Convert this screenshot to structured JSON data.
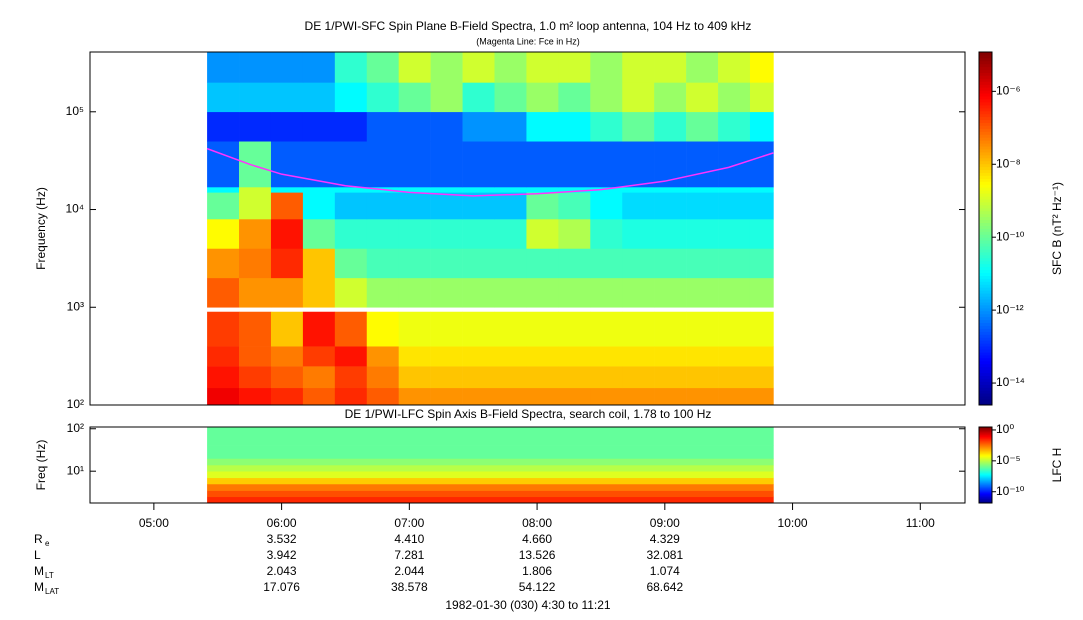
{
  "chart_data": [
    {
      "type": "heatmap",
      "title": "DE 1/PWI-SFC  Spin Plane B-Field Spectra, 1.0 m² loop antenna, 104 Hz to 409 kHz",
      "subtitle": "(Magenta Line: Fce in Hz)",
      "ylabel": "Frequency (Hz)",
      "log_y": true,
      "xlim": [
        "04:30",
        "11:21"
      ],
      "ylim": [
        100,
        409000
      ],
      "yticks": [
        {
          "value": 100,
          "label": "10²"
        },
        {
          "value": 1000,
          "label": "10³"
        },
        {
          "value": 10000,
          "label": "10⁴"
        },
        {
          "value": 100000,
          "label": "10⁵"
        }
      ],
      "x_edges": [
        "05:25",
        "05:40",
        "05:55",
        "06:10",
        "06:25",
        "06:40",
        "06:55",
        "07:10",
        "07:25",
        "07:40",
        "07:55",
        "08:10",
        "08:25",
        "08:40",
        "08:55",
        "09:10",
        "09:25",
        "09:40",
        "09:51"
      ],
      "y_edges": [
        100,
        150,
        250,
        400,
        900,
        1000,
        2000,
        4000,
        8000,
        15000,
        17000,
        50000,
        100000,
        200000,
        409000
      ],
      "z": [
        [
          1e-06,
          5e-07,
          3e-07,
          1e-07,
          3e-07,
          1e-07,
          3e-08,
          3e-08,
          3e-08,
          3e-08,
          3e-08,
          3e-08,
          3e-08,
          3e-08,
          3e-08,
          3e-08,
          3e-08,
          3e-08
        ],
        [
          5e-07,
          2e-07,
          1e-07,
          5e-08,
          2e-07,
          5e-08,
          1e-08,
          1e-08,
          1e-08,
          1e-08,
          1e-08,
          1e-08,
          1e-08,
          1e-08,
          1e-08,
          1e-08,
          1e-08,
          1e-08
        ],
        [
          3e-07,
          1e-07,
          5e-08,
          2e-07,
          5e-07,
          3e-08,
          5e-09,
          5e-09,
          5e-09,
          5e-09,
          5e-09,
          5e-09,
          5e-09,
          5e-09,
          5e-09,
          5e-09,
          5e-09,
          5e-09
        ],
        [
          2e-07,
          1e-07,
          1e-08,
          5e-07,
          1e-07,
          3e-09,
          2e-09,
          2e-09,
          2e-09,
          2e-09,
          2e-09,
          2e-09,
          2e-09,
          2e-09,
          2e-09,
          2e-09,
          2e-09,
          2e-09
        ],
        [
          null,
          null,
          null,
          null,
          null,
          null,
          null,
          null,
          null,
          null,
          null,
          null,
          null,
          null,
          null,
          null,
          null,
          null
        ],
        [
          1e-07,
          3e-08,
          3e-08,
          1e-08,
          1e-09,
          3e-10,
          3e-10,
          3e-10,
          3e-10,
          3e-10,
          3e-10,
          3e-10,
          3e-10,
          3e-10,
          3e-10,
          3e-10,
          3e-10,
          3e-10
        ],
        [
          3e-08,
          5e-08,
          3e-07,
          1e-08,
          1e-10,
          5e-11,
          5e-11,
          5e-11,
          5e-11,
          5e-11,
          5e-11,
          5e-11,
          5e-11,
          5e-11,
          5e-11,
          5e-11,
          5e-11,
          5e-11
        ],
        [
          3e-09,
          3e-08,
          5e-07,
          1e-10,
          3e-11,
          3e-11,
          3e-11,
          3e-11,
          3e-11,
          3e-11,
          1e-09,
          5e-10,
          3e-11,
          2e-11,
          2e-11,
          2e-11,
          2e-11,
          2e-11
        ],
        [
          1e-10,
          1e-09,
          1e-07,
          1e-11,
          3e-12,
          3e-12,
          3e-12,
          3e-12,
          3e-12,
          3e-12,
          1e-10,
          5e-11,
          1e-11,
          5e-12,
          5e-12,
          5e-12,
          5e-12,
          5e-12
        ],
        [
          1e-11,
          1e-09,
          1e-11,
          1e-11,
          1e-11,
          1e-11,
          1e-11,
          1e-11,
          1e-11,
          1e-11,
          1e-11,
          1e-11,
          1e-11,
          1e-11,
          1e-11,
          1e-11,
          1e-11,
          1e-11
        ],
        [
          3e-13,
          1e-10,
          3e-13,
          3e-13,
          3e-13,
          3e-13,
          3e-13,
          3e-13,
          3e-13,
          3e-13,
          3e-13,
          3e-13,
          3e-13,
          3e-13,
          3e-13,
          3e-13,
          3e-13,
          3e-13
        ],
        [
          1e-13,
          1e-13,
          1e-13,
          1e-13,
          1e-13,
          3e-13,
          3e-13,
          3e-13,
          1e-12,
          1e-12,
          1e-11,
          1e-11,
          3e-11,
          1e-10,
          3e-11,
          1e-10,
          3e-11,
          1e-11
        ],
        [
          3e-12,
          3e-12,
          3e-12,
          3e-12,
          1e-11,
          3e-11,
          1e-10,
          3e-10,
          3e-11,
          1e-10,
          3e-10,
          1e-10,
          3e-10,
          1e-09,
          3e-10,
          1e-09,
          3e-10,
          1e-09
        ],
        [
          1e-12,
          1e-12,
          1e-12,
          1e-12,
          3e-11,
          1e-10,
          1e-09,
          3e-10,
          1e-09,
          3e-10,
          1e-09,
          1e-09,
          3e-10,
          1e-09,
          1e-09,
          3e-10,
          1e-09,
          3e-09
        ]
      ],
      "colorbar": {
        "label": "SFC B (nT² Hz⁻¹)",
        "log": true,
        "lim": [
          2.5e-15,
          1.2e-05
        ],
        "ticks": [
          {
            "value": 1e-14,
            "label": "10⁻¹⁴"
          },
          {
            "value": 1e-12,
            "label": "10⁻¹²"
          },
          {
            "value": 1e-10,
            "label": "10⁻¹⁰"
          },
          {
            "value": 1e-08,
            "label": "10⁻⁸"
          },
          {
            "value": 1e-06,
            "label": "10⁻⁶"
          }
        ]
      },
      "line": {
        "color": "#ff33ff",
        "x": [
          "05:25",
          "05:45",
          "06:00",
          "06:30",
          "07:00",
          "07:30",
          "08:00",
          "08:30",
          "09:00",
          "09:30",
          "09:51"
        ],
        "values": [
          42000,
          29000,
          23000,
          17500,
          15000,
          13800,
          14500,
          16000,
          19500,
          27000,
          38000
        ]
      }
    },
    {
      "type": "heatmap",
      "title": "DE 1/PWI-LFC  Spin Axis B-Field Spectra, search coil, 1.78 to 100 Hz",
      "ylabel": "Freq (Hz)",
      "log_y": true,
      "xlim": [
        "04:30",
        "11:21"
      ],
      "xticks": [
        "05:00",
        "06:00",
        "07:00",
        "08:00",
        "09:00",
        "10:00",
        "11:00"
      ],
      "ylim": [
        1.78,
        110
      ],
      "yticks": [
        {
          "value": 10,
          "label": "10¹"
        },
        {
          "value": 100,
          "label": "10²"
        }
      ],
      "x_edges": [
        "05:25",
        "09:51"
      ],
      "y_edges": [
        1.78,
        2.5,
        3.5,
        5,
        7,
        10,
        14,
        20,
        40,
        110
      ],
      "z": [
        [
          0.03
        ],
        [
          0.01
        ],
        [
          0.003
        ],
        [
          0.0003
        ],
        [
          3e-05
        ],
        [
          1e-05
        ],
        [
          3e-06
        ],
        [
          1e-06
        ],
        [
          1e-06
        ]
      ],
      "colorbar": {
        "label": "LFC H",
        "log": true,
        "lim": [
          1.5e-12,
          3
        ],
        "ticks": [
          {
            "value": 1e-10,
            "label": "10⁻¹⁰"
          },
          {
            "value": 1e-05,
            "label": "10⁻⁵"
          },
          {
            "value": 1,
            "label": "10⁰"
          }
        ]
      }
    }
  ],
  "ephemeris": {
    "rows": [
      {
        "label": "R",
        "sub": "e",
        "values": [
          "3.532",
          "4.410",
          "4.660",
          "4.329"
        ]
      },
      {
        "label": "L",
        "values": [
          "3.942",
          "7.281",
          "13.526",
          "32.081"
        ]
      },
      {
        "label": "M",
        "sub": "LT",
        "values": [
          "2.043",
          "2.044",
          "1.806",
          "1.074"
        ]
      },
      {
        "label": "M",
        "sub": "LAT",
        "values": [
          "17.076",
          "38.578",
          "54.122",
          "68.642"
        ]
      }
    ]
  },
  "footer": "1982-01-30 (030) 4:30 to 11:21"
}
